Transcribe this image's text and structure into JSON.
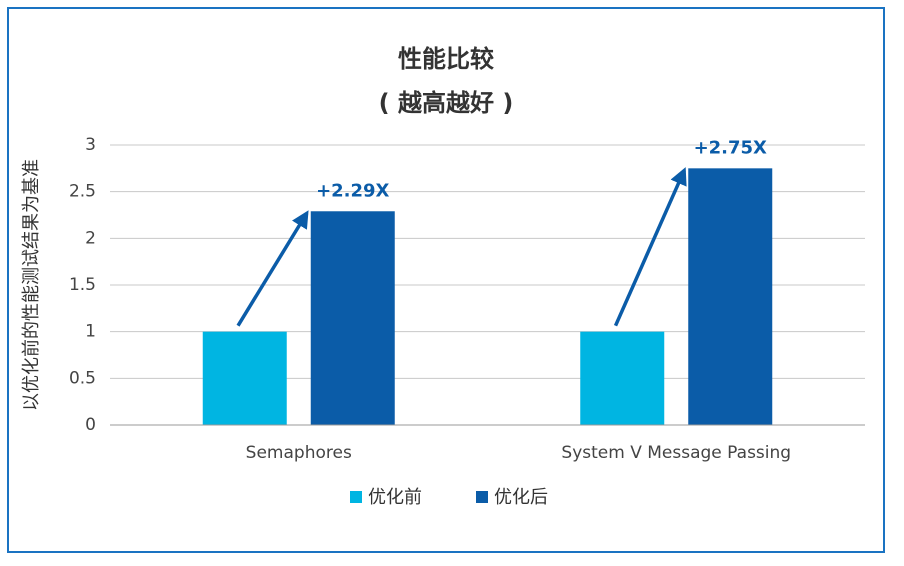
{
  "chart_data": {
    "type": "bar",
    "title": "性能比较",
    "subtitle": "( 越高越好 )",
    "y_label": "以优化前的性能测试结果为基准",
    "categories": [
      "Semaphores",
      "System V Message Passing"
    ],
    "series": [
      {
        "name": "优化前",
        "color": "#00b5e2",
        "values": [
          1,
          1
        ]
      },
      {
        "name": "优化后",
        "color": "#0b5ca8",
        "values": [
          2.29,
          2.75
        ],
        "value_labels": [
          "+2.29X",
          "+2.75X"
        ]
      }
    ],
    "ylim": [
      0,
      3
    ],
    "yticks": [
      0,
      0.5,
      1,
      1.5,
      2,
      2.5,
      3
    ],
    "grid": true,
    "legend": "bottom"
  }
}
